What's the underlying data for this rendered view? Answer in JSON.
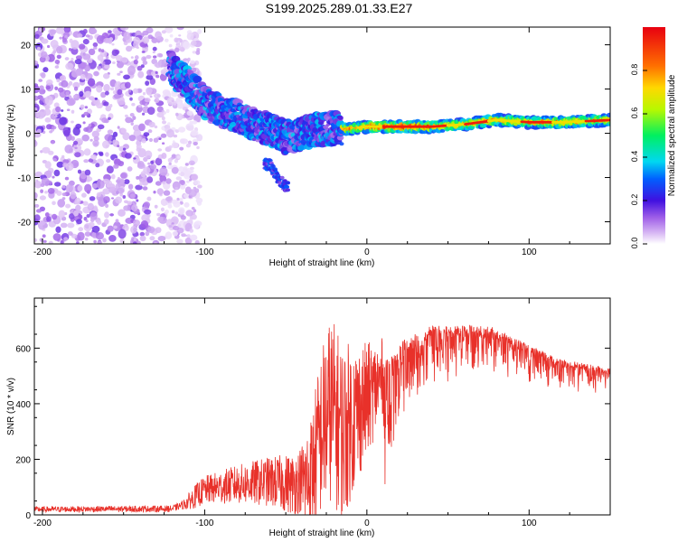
{
  "title": "S199.2025.289.01.33.E27",
  "colors": {
    "axis": "#000000",
    "snr_line": "#e8312a",
    "colormap": [
      "#ffffff",
      "#c8a0f0",
      "#7a20d8",
      "#2a10e8",
      "#00c8ff",
      "#00f050",
      "#c8ff00",
      "#ff9000",
      "#e81010"
    ]
  },
  "chart_data": [
    {
      "name": "spectrogram",
      "type": "heatmap",
      "xlabel": "Height of straight line (km)",
      "ylabel": "Frequency (Hz)",
      "xlim": [
        -205,
        150
      ],
      "ylim": [
        -25,
        24
      ],
      "xticks": [
        -200,
        -100,
        0,
        100
      ],
      "yticks": [
        -20,
        -10,
        0,
        10,
        20
      ],
      "xtick_labels": [
        "-200",
        "-100",
        "0",
        "100"
      ],
      "ytick_labels": [
        "-20",
        "-10",
        "0",
        "10",
        "20"
      ],
      "ridge": [
        {
          "x": -122,
          "y": 15
        },
        {
          "x": -110,
          "y": 11
        },
        {
          "x": -100,
          "y": 7
        },
        {
          "x": -90,
          "y": 5
        },
        {
          "x": -80,
          "y": 4
        },
        {
          "x": -70,
          "y": 2
        },
        {
          "x": -60,
          "y": 1
        },
        {
          "x": -50,
          "y": -1
        },
        {
          "x": -40,
          "y": 0
        },
        {
          "x": -30,
          "y": 1
        },
        {
          "x": -20,
          "y": 1
        },
        {
          "x": -10,
          "y": 1
        },
        {
          "x": 0,
          "y": 1.5
        },
        {
          "x": 20,
          "y": 1.5
        },
        {
          "x": 40,
          "y": 1.5
        },
        {
          "x": 60,
          "y": 2
        },
        {
          "x": 80,
          "y": 3
        },
        {
          "x": 100,
          "y": 2.5
        },
        {
          "x": 120,
          "y": 2.5
        },
        {
          "x": 150,
          "y": 3
        }
      ],
      "branch": [
        {
          "x": -60,
          "y": -7
        },
        {
          "x": -55,
          "y": -10
        },
        {
          "x": -50,
          "y": -12
        }
      ],
      "noise_region_x": [
        -205,
        -115
      ],
      "colorbar": {
        "label": "Normalized spectral amplitude",
        "range": [
          0,
          1
        ],
        "ticks": [
          0.0,
          0.2,
          0.4,
          0.6,
          0.8
        ],
        "tick_labels": [
          "0.0",
          "0.2",
          "0.4",
          "0.6",
          "0.8"
        ]
      }
    },
    {
      "name": "snr",
      "type": "line",
      "xlabel": "Height of straight line (km)",
      "ylabel": "SNR (10 * v/v)",
      "xlim": [
        -205,
        150
      ],
      "ylim": [
        0,
        780
      ],
      "xticks": [
        -200,
        -100,
        0,
        100
      ],
      "yticks": [
        0,
        200,
        400,
        600
      ],
      "xtick_labels": [
        "-200",
        "-100",
        "0",
        "100"
      ],
      "ytick_labels": [
        "0",
        "200",
        "400",
        "600"
      ],
      "envelope": [
        {
          "x": -205,
          "y": 20
        },
        {
          "x": -120,
          "y": 22
        },
        {
          "x": -112,
          "y": 40
        },
        {
          "x": -100,
          "y": 90
        },
        {
          "x": -80,
          "y": 110
        },
        {
          "x": -60,
          "y": 120
        },
        {
          "x": -45,
          "y": 110
        },
        {
          "x": -35,
          "y": 150
        },
        {
          "x": -28,
          "y": 330
        },
        {
          "x": -22,
          "y": 420
        },
        {
          "x": -15,
          "y": 330
        },
        {
          "x": -5,
          "y": 400
        },
        {
          "x": 5,
          "y": 470
        },
        {
          "x": 15,
          "y": 560
        },
        {
          "x": 25,
          "y": 620
        },
        {
          "x": 40,
          "y": 665
        },
        {
          "x": 60,
          "y": 670
        },
        {
          "x": 80,
          "y": 660
        },
        {
          "x": 100,
          "y": 600
        },
        {
          "x": 120,
          "y": 550
        },
        {
          "x": 150,
          "y": 520
        }
      ],
      "noise_amp": [
        {
          "x": -205,
          "y": 10
        },
        {
          "x": -115,
          "y": 12
        },
        {
          "x": -105,
          "y": 45
        },
        {
          "x": -60,
          "y": 90
        },
        {
          "x": -40,
          "y": 120
        },
        {
          "x": -25,
          "y": 260
        },
        {
          "x": -15,
          "y": 250
        },
        {
          "x": 0,
          "y": 160
        },
        {
          "x": 15,
          "y": 80
        },
        {
          "x": 30,
          "y": 50
        },
        {
          "x": 60,
          "y": 40
        },
        {
          "x": 100,
          "y": 30
        },
        {
          "x": 150,
          "y": 20
        }
      ]
    }
  ]
}
